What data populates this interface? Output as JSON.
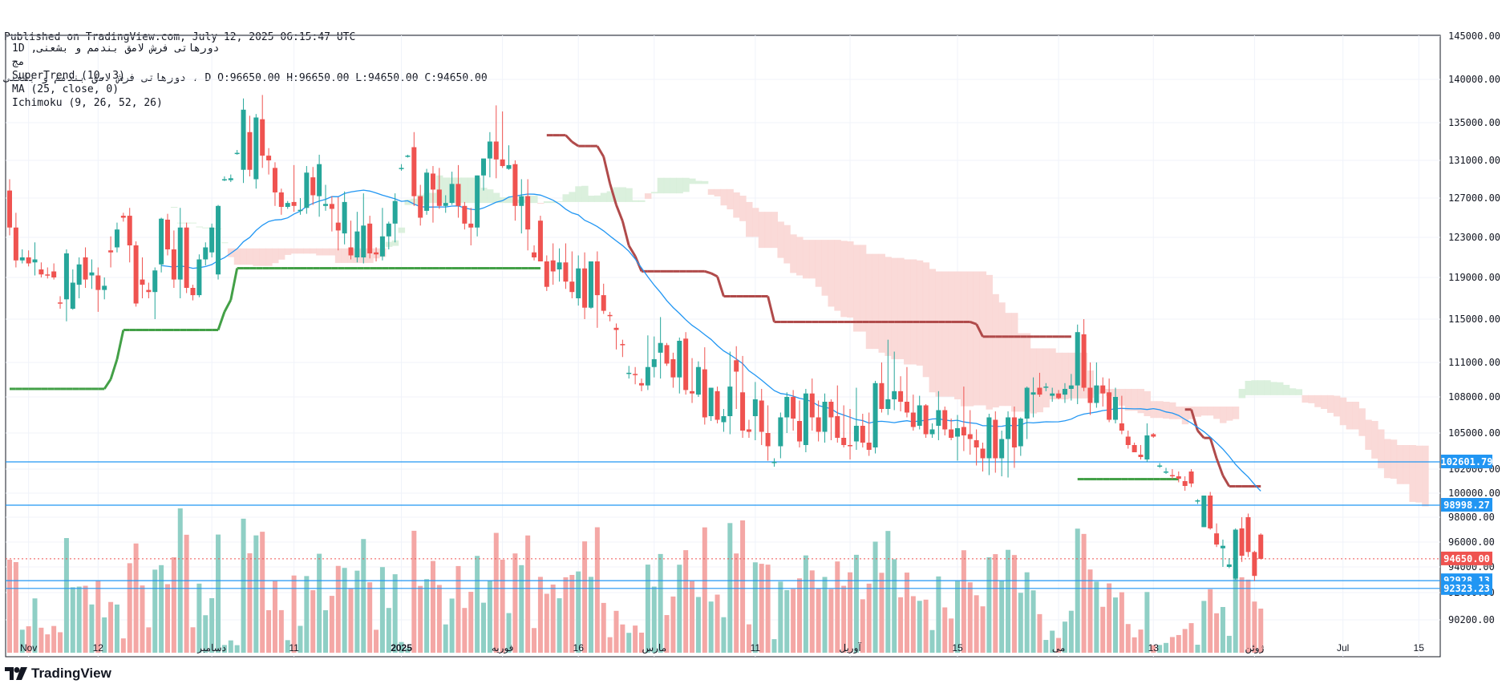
{
  "header": {
    "published": "Published on TradingView.com, July 12, 2025 06:15:47 UTC",
    "symbol_line": "دورهاتی فرش لامق بندمم و بشعنی ، D O:96650.00 H:96650.00 L:94650.00 C:94650.00"
  },
  "legend": {
    "line1": "1D ,دورهاتی فرش لامق بندمم و بشعنی",
    "line2": "مج",
    "supertrend": "SuperTrend (10, 3)",
    "ma": "MA (25, close, 0)",
    "ichimoku": "Ichimoku (9, 26, 52, 26)"
  },
  "footer": {
    "logo_text": "TradingView"
  },
  "colors": {
    "up": "#26a69a",
    "down": "#ef5350",
    "vol_up": "#8fcfc5",
    "vol_down": "#f4a7a5",
    "supertrend_up": "#43a047",
    "supertrend_down": "#b04a4a",
    "ma": "#2196f3",
    "cloud_bear": "#f9d6d4",
    "cloud_bull": "#d7eed9",
    "hline": "#2196f3"
  },
  "chart_data": {
    "type": "candlestick",
    "timeframe": "1D",
    "y_axis": {
      "ticks": [
        145000,
        140000,
        135000,
        131000,
        127000,
        123000,
        119000,
        115000,
        111000,
        108000,
        105000,
        102000,
        100000,
        98000,
        96000,
        94000,
        92000,
        90200
      ],
      "tick_labels": [
        "145000.00",
        "140000.00",
        "135000.00",
        "131000.00",
        "127000.00",
        "123000.00",
        "119000.00",
        "115000.00",
        "111000.00",
        "108000.00",
        "105000.00",
        "102000.00",
        "100000.00",
        "98000.00",
        "96000.00",
        "94000.00",
        "92000.00",
        "90200.00"
      ],
      "scale": "log-like",
      "range": [
        89300,
        145500
      ]
    },
    "x_axis": {
      "labels": [
        "Nov",
        "12",
        "دسامبر",
        "11",
        "2025",
        "فوریه",
        "16",
        "مارس",
        "11",
        "آوریل",
        "15",
        "می",
        "13",
        "ژوئن",
        "Jul",
        "15"
      ],
      "label_index": [
        3,
        14,
        32,
        45,
        62,
        78,
        90,
        102,
        118,
        133,
        150,
        166,
        181,
        197,
        211,
        223
      ]
    },
    "price_lines": [
      {
        "value": 102601.79,
        "label": "102601.79"
      },
      {
        "value": 98998.27,
        "label": "98998.27"
      },
      {
        "value": 92928.13,
        "label": "92928.13"
      },
      {
        "value": 92323.23,
        "label": "92323.23"
      }
    ],
    "last_price": {
      "value": 94650.0,
      "label": "94650.00"
    },
    "candles": [
      [
        127800,
        129000,
        123200,
        124000
      ],
      [
        124000,
        125500,
        120000,
        120700
      ],
      [
        120700,
        121800,
        120400,
        121000
      ],
      [
        121000,
        121700,
        120100,
        120400
      ],
      [
        120500,
        122500,
        119200,
        120800
      ],
      [
        119800,
        120500,
        119000,
        119300
      ],
      [
        119300,
        120000,
        118900,
        119200
      ],
      [
        119600,
        120400,
        118800,
        119000
      ],
      [
        116600,
        117200,
        116000,
        116500
      ],
      [
        116900,
        121800,
        114800,
        121400
      ],
      [
        116000,
        119800,
        115900,
        118500
      ],
      [
        118300,
        121000,
        117000,
        120300
      ],
      [
        121000,
        122000,
        118000,
        118800
      ],
      [
        119200,
        120800,
        117900,
        119500
      ],
      [
        119200,
        120000,
        115700,
        117800
      ],
      [
        117800,
        119000,
        116900,
        118200
      ],
      [
        121700,
        123100,
        120000,
        121500
      ],
      [
        122000,
        124500,
        121500,
        123800
      ],
      [
        125200,
        125500,
        124600,
        125000
      ],
      [
        125200,
        126000,
        120500,
        122200
      ],
      [
        122200,
        122600,
        116200,
        116500
      ],
      [
        118800,
        121000,
        117000,
        118300
      ],
      [
        117800,
        118500,
        117000,
        117600
      ],
      [
        117600,
        120000,
        115000,
        119700
      ],
      [
        120300,
        125000,
        119500,
        124900
      ],
      [
        124800,
        125400,
        121200,
        121800
      ],
      [
        121800,
        123700,
        118000,
        118800
      ],
      [
        118800,
        126000,
        117000,
        124000
      ],
      [
        124000,
        124500,
        117500,
        118000
      ],
      [
        118000,
        118300,
        116800,
        117300
      ],
      [
        117300,
        121300,
        117100,
        120800
      ],
      [
        120800,
        122500,
        120200,
        122000
      ],
      [
        121500,
        124400,
        121000,
        124000
      ],
      [
        119300,
        126300,
        118800,
        126200
      ],
      [
        128900,
        129300,
        128800,
        129000
      ],
      [
        128900,
        129500,
        128700,
        129100
      ],
      [
        131800,
        132100,
        131600,
        131800
      ],
      [
        130000,
        137800,
        128600,
        136500
      ],
      [
        134000,
        135800,
        129300,
        130000
      ],
      [
        129000,
        136000,
        128000,
        135600
      ],
      [
        135400,
        138200,
        130200,
        131500
      ],
      [
        131500,
        132300,
        129500,
        131000
      ],
      [
        130200,
        130800,
        126200,
        127600
      ],
      [
        127600,
        128000,
        125300,
        126100
      ],
      [
        126100,
        126700,
        125900,
        126500
      ],
      [
        126600,
        130500,
        125600,
        126200
      ],
      [
        125800,
        127000,
        125300,
        125800
      ],
      [
        126000,
        130400,
        125400,
        129700
      ],
      [
        129200,
        130300,
        126300,
        127300
      ],
      [
        127200,
        131600,
        125100,
        130600
      ],
      [
        126200,
        128400,
        125700,
        126400
      ],
      [
        126400,
        127200,
        123600,
        125900
      ],
      [
        124500,
        127100,
        121700,
        123700
      ],
      [
        123400,
        127700,
        122300,
        126600
      ],
      [
        122000,
        124700,
        120800,
        121200
      ],
      [
        121000,
        125600,
        120500,
        123600
      ],
      [
        121000,
        127500,
        120400,
        124200
      ],
      [
        124400,
        125200,
        120900,
        121400
      ],
      [
        121500,
        122000,
        120600,
        121300
      ],
      [
        121100,
        126000,
        120700,
        123100
      ],
      [
        123100,
        124600,
        121800,
        124400
      ],
      [
        124400,
        127500,
        122500,
        126700
      ],
      [
        130100,
        130600,
        129900,
        130200
      ],
      [
        131500,
        131600,
        131300,
        131500
      ],
      [
        132400,
        134000,
        126200,
        127200
      ],
      [
        127200,
        128400,
        124200,
        125000
      ],
      [
        125700,
        130100,
        125300,
        129700
      ],
      [
        129600,
        130400,
        124500,
        127900
      ],
      [
        127900,
        130200,
        125900,
        126200
      ],
      [
        126200,
        127300,
        125500,
        126500
      ],
      [
        126500,
        129800,
        126300,
        128500
      ],
      [
        128500,
        130500,
        125000,
        126200
      ],
      [
        126200,
        126600,
        123800,
        124400
      ],
      [
        124400,
        126000,
        122200,
        124000
      ],
      [
        124000,
        129400,
        123100,
        129400
      ],
      [
        129400,
        131100,
        127800,
        131200
      ],
      [
        131200,
        134000,
        129200,
        133000
      ],
      [
        133000,
        137000,
        129100,
        131100
      ],
      [
        131100,
        136300,
        130200,
        130400
      ],
      [
        130100,
        132600,
        130000,
        130500
      ],
      [
        130600,
        131000,
        124700,
        126200
      ],
      [
        126200,
        129000,
        123400,
        127200
      ],
      [
        127200,
        129000,
        121700,
        123800
      ],
      [
        121500,
        122200,
        120700,
        121000
      ],
      [
        124700,
        125200,
        120600,
        120600
      ],
      [
        120600,
        121200,
        117700,
        118100
      ],
      [
        120700,
        122400,
        118300,
        119600
      ],
      [
        119800,
        121900,
        118600,
        120500
      ],
      [
        120500,
        122400,
        117900,
        118600
      ],
      [
        118600,
        121600,
        117000,
        117600
      ],
      [
        117000,
        121200,
        116300,
        119900
      ],
      [
        119900,
        121500,
        115000,
        116100
      ],
      [
        116100,
        120600,
        116000,
        120600
      ],
      [
        120600,
        121600,
        114200,
        117300
      ],
      [
        117300,
        118400,
        115500,
        115800
      ],
      [
        115400,
        115700,
        114800,
        115300
      ],
      [
        114200,
        114600,
        112200,
        114000
      ],
      [
        112700,
        113100,
        111500,
        112600
      ],
      [
        110100,
        110700,
        109600,
        110100
      ],
      [
        110000,
        110600,
        109100,
        109900
      ],
      [
        109200,
        109600,
        108500,
        109000
      ],
      [
        109000,
        113500,
        108600,
        110600
      ],
      [
        110600,
        113400,
        109700,
        111300
      ],
      [
        111900,
        115200,
        109600,
        112800
      ],
      [
        112600,
        112800,
        110700,
        110900
      ],
      [
        111300,
        111900,
        108800,
        109700
      ],
      [
        109700,
        113300,
        108300,
        113000
      ],
      [
        113200,
        113800,
        108200,
        108600
      ],
      [
        108500,
        111400,
        107500,
        108300
      ],
      [
        108200,
        111100,
        108000,
        110600
      ],
      [
        110400,
        112400,
        105700,
        106300
      ],
      [
        106400,
        108800,
        106000,
        108800
      ],
      [
        108500,
        108900,
        105800,
        106100
      ],
      [
        105900,
        107000,
        105100,
        106400
      ],
      [
        106400,
        112000,
        104900,
        108900
      ],
      [
        111200,
        112500,
        107000,
        110200
      ],
      [
        108400,
        111600,
        104600,
        105200
      ],
      [
        105300,
        106100,
        104600,
        105100
      ],
      [
        106400,
        109300,
        104400,
        107800
      ],
      [
        107700,
        108700,
        104000,
        105100
      ],
      [
        105000,
        107300,
        102700,
        103900
      ],
      [
        102500,
        102900,
        102200,
        102600
      ],
      [
        103900,
        106700,
        102900,
        106300
      ],
      [
        106300,
        108400,
        105000,
        108000
      ],
      [
        108000,
        108600,
        105200,
        106200
      ],
      [
        106000,
        107700,
        103800,
        104300
      ],
      [
        104000,
        108700,
        103400,
        108300
      ],
      [
        108300,
        109600,
        105200,
        106300
      ],
      [
        106300,
        107700,
        104300,
        105100
      ],
      [
        105100,
        108300,
        104200,
        107600
      ],
      [
        107600,
        107800,
        104400,
        106300
      ],
      [
        106400,
        109000,
        104200,
        104600
      ],
      [
        104600,
        107300,
        103800,
        104000
      ],
      [
        104000,
        107000,
        102800,
        103900
      ],
      [
        104300,
        108800,
        103600,
        105600
      ],
      [
        105600,
        106600,
        103800,
        104200
      ],
      [
        104200,
        106700,
        103100,
        103600
      ],
      [
        103800,
        109400,
        103300,
        109200
      ],
      [
        109200,
        111000,
        106700,
        107000
      ],
      [
        107000,
        113100,
        106500,
        107800
      ],
      [
        107800,
        112000,
        106900,
        108500
      ],
      [
        108500,
        109800,
        106800,
        107600
      ],
      [
        107600,
        110600,
        106300,
        106700
      ],
      [
        106700,
        108200,
        105200,
        105500
      ],
      [
        105600,
        108100,
        105300,
        107300
      ],
      [
        107300,
        107400,
        104600,
        104900
      ],
      [
        104900,
        105800,
        104600,
        105300
      ],
      [
        105600,
        108500,
        104400,
        106900
      ],
      [
        106900,
        107200,
        104800,
        105300
      ],
      [
        105300,
        106200,
        104400,
        104600
      ],
      [
        104700,
        106500,
        102700,
        105400
      ],
      [
        105500,
        108900,
        103500,
        104800
      ],
      [
        104900,
        106900,
        103200,
        104500
      ],
      [
        104400,
        105300,
        102300,
        103800
      ],
      [
        103700,
        104200,
        101800,
        102900
      ],
      [
        102900,
        106600,
        101500,
        106300
      ],
      [
        106100,
        106800,
        101700,
        102900
      ],
      [
        102900,
        105200,
        101400,
        104500
      ],
      [
        104500,
        106800,
        101300,
        106300
      ],
      [
        106300,
        107200,
        102100,
        103800
      ],
      [
        103900,
        106300,
        103100,
        106200
      ],
      [
        106200,
        108900,
        104500,
        108800
      ],
      [
        108200,
        109700,
        106300,
        108400
      ],
      [
        108800,
        110100,
        108000,
        108200
      ],
      [
        108800,
        109200,
        108500,
        108900
      ],
      [
        108100,
        108800,
        107600,
        108300
      ],
      [
        108300,
        108600,
        107800,
        107900
      ],
      [
        108200,
        109200,
        107500,
        108700
      ],
      [
        108700,
        110000,
        107700,
        109000
      ],
      [
        109000,
        114500,
        107400,
        113800
      ],
      [
        113600,
        115000,
        108500,
        108800
      ],
      [
        108800,
        111000,
        106500,
        107500
      ],
      [
        107500,
        111000,
        107100,
        109000
      ],
      [
        109000,
        109700,
        107200,
        108300
      ],
      [
        108400,
        109600,
        105900,
        106100
      ],
      [
        106100,
        108800,
        105800,
        108000
      ],
      [
        105800,
        108100,
        104900,
        105200
      ],
      [
        104700,
        105200,
        103700,
        104000
      ],
      [
        104000,
        104200,
        103400,
        103400
      ],
      [
        103200,
        104000,
        102800,
        103000
      ],
      [
        102800,
        105800,
        102600,
        104800
      ],
      [
        104900,
        105000,
        104600,
        104700
      ],
      [
        102200,
        102500,
        102100,
        102300
      ],
      [
        101800,
        102100,
        101600,
        101800
      ],
      [
        101500,
        102000,
        101200,
        101400
      ],
      [
        101400,
        101800,
        100900,
        101200
      ],
      [
        101000,
        101400,
        100200,
        100600
      ],
      [
        101800,
        102000,
        100500,
        100800
      ],
      [
        99300,
        99500,
        99100,
        99400
      ],
      [
        97200,
        99800,
        97200,
        99800
      ],
      [
        99800,
        100100,
        97000,
        97100
      ],
      [
        96700,
        97500,
        95600,
        95800
      ],
      [
        95500,
        96200,
        94000,
        95700
      ],
      [
        94000,
        94700,
        93900,
        94200
      ],
      [
        93100,
        97100,
        93000,
        97000
      ],
      [
        97100,
        98000,
        94400,
        94900
      ],
      [
        98000,
        98300,
        94800,
        95200
      ],
      [
        95200,
        95300,
        92900,
        93300
      ],
      [
        96600,
        96700,
        94600,
        94650
      ]
    ],
    "volume_max": 100
  }
}
